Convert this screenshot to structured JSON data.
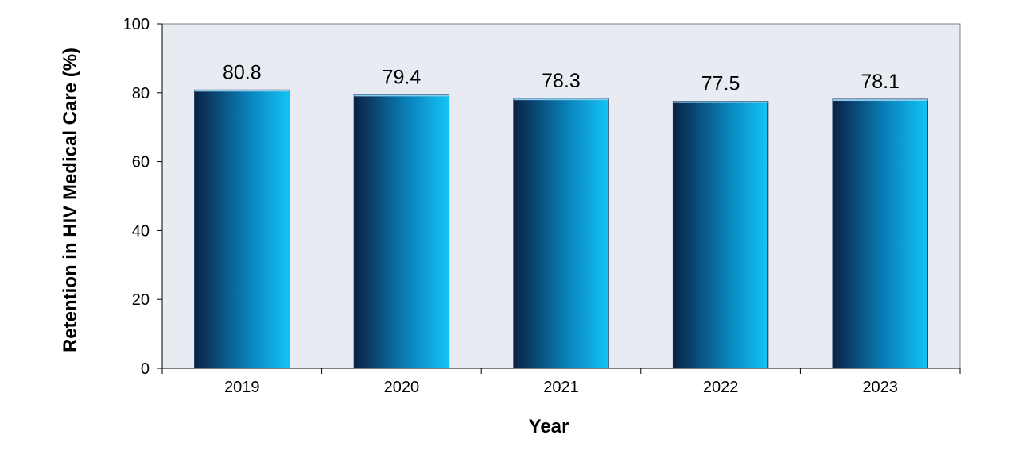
{
  "chart_data": {
    "type": "bar",
    "categories": [
      "2019",
      "2020",
      "2021",
      "2022",
      "2023"
    ],
    "values": [
      80.8,
      79.4,
      78.3,
      77.5,
      78.1
    ],
    "data_labels": [
      "80.8",
      "79.4",
      "78.3",
      "77.5",
      "78.1"
    ],
    "title": "",
    "xlabel": "Year",
    "ylabel": "Retention in HIV Medical Care (%)",
    "ylim": [
      0,
      100
    ],
    "yticks": [
      "0",
      "20",
      "40",
      "60",
      "80",
      "100"
    ],
    "grid": false,
    "legend": "none",
    "colors": {
      "plot_background": "#e8ecf2",
      "bar_dark": "#0a2144",
      "bar_light": "#12c4f6",
      "bar_top": "#8ec9ea"
    }
  }
}
